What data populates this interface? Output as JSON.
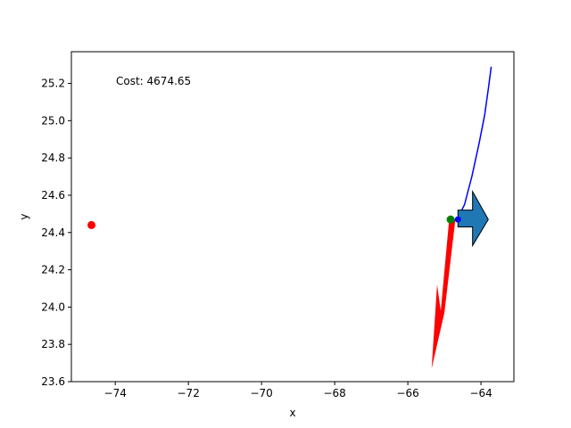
{
  "chart_data": {
    "type": "line",
    "title": "",
    "xlabel": "x",
    "ylabel": "y",
    "xlim": [
      -75.2,
      -63.1
    ],
    "ylim": [
      23.6,
      25.37
    ],
    "xticks": [
      -74,
      -72,
      -70,
      -68,
      -66,
      -64
    ],
    "xtick_labels": [
      "−74",
      "−72",
      "−70",
      "−68",
      "−66",
      "−64"
    ],
    "yticks": [
      23.6,
      23.8,
      24.0,
      24.2,
      24.4,
      24.6,
      24.8,
      25.0,
      25.2
    ],
    "ytick_labels": [
      "23.6",
      "23.8",
      "24.0",
      "24.2",
      "24.4",
      "24.6",
      "24.8",
      "25.0",
      "25.2"
    ],
    "grid": false,
    "annotation": "Cost: 4674.65",
    "trajectory": {
      "color": "#0000ff",
      "x": [
        -64.65,
        -64.45,
        -64.25,
        -64.05,
        -63.9,
        -63.8,
        -63.72
      ],
      "y": [
        24.47,
        24.55,
        24.7,
        24.88,
        25.03,
        25.17,
        25.29
      ]
    },
    "points": [
      {
        "x": -74.65,
        "y": 24.44,
        "color": "#ff0000"
      },
      {
        "x": -64.83,
        "y": 24.47,
        "color": "#008000"
      },
      {
        "x": -64.63,
        "y": 24.47,
        "color": "#0000ff"
      }
    ],
    "red_arrow": {
      "color": "#ff0000",
      "polygon": [
        [
          -64.87,
          24.47
        ],
        [
          -64.7,
          24.47
        ],
        [
          -65.0,
          23.97
        ],
        [
          -65.35,
          23.67
        ],
        [
          -65.2,
          24.12
        ],
        [
          -65.1,
          23.98
        ]
      ]
    },
    "blue_arrow": {
      "color": "#1f77b4",
      "polygon": [
        [
          -64.63,
          24.43
        ],
        [
          -64.23,
          24.43
        ],
        [
          -64.23,
          24.33
        ],
        [
          -63.8,
          24.47
        ],
        [
          -64.23,
          24.62
        ],
        [
          -64.23,
          24.52
        ],
        [
          -64.63,
          24.52
        ]
      ]
    }
  }
}
